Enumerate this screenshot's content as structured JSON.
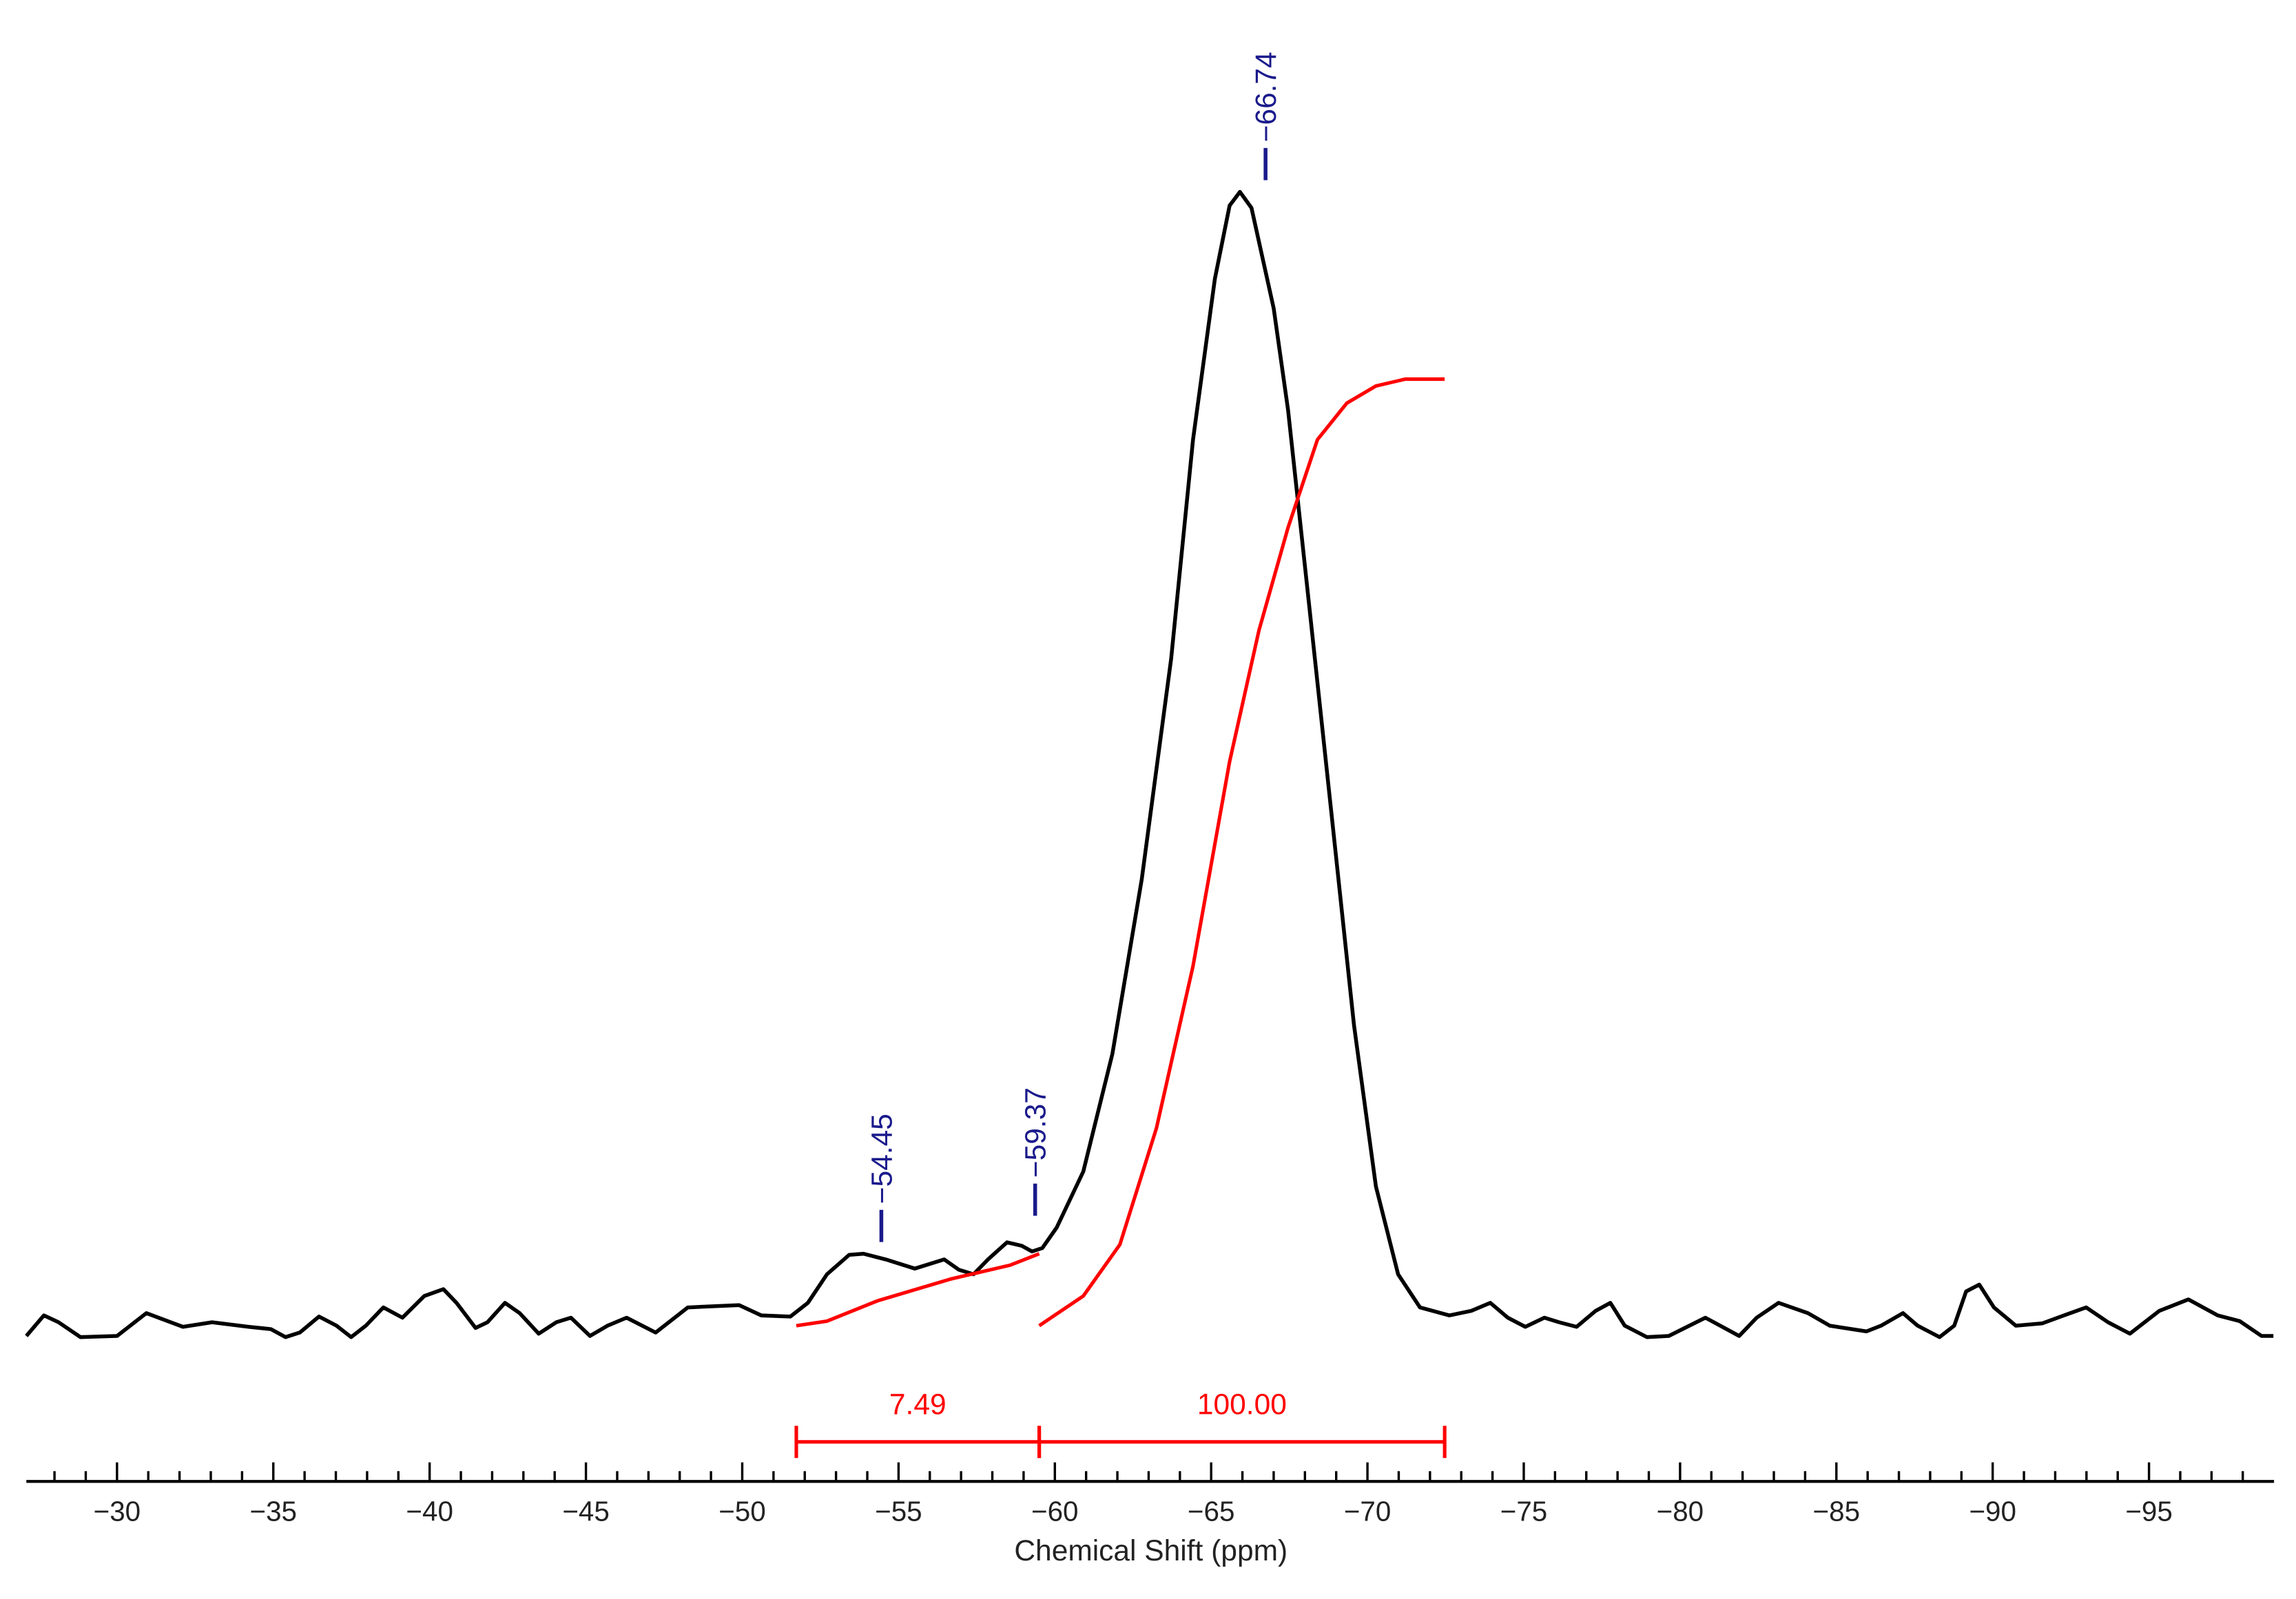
{
  "chart_data": {
    "type": "line",
    "xlabel": "Chemical Shift (ppm)",
    "color": "#000000",
    "xlim": [
      -27.1,
      -99
    ],
    "ylim": [
      -11.5,
      116.7
    ],
    "xticks": [
      {
        "value": -30,
        "label": "−30"
      },
      {
        "value": -35,
        "label": "−35"
      },
      {
        "value": -40,
        "label": "−40"
      },
      {
        "value": -45,
        "label": "−45"
      },
      {
        "value": -50,
        "label": "−50"
      },
      {
        "value": -55,
        "label": "−55"
      },
      {
        "value": -60,
        "label": "−60"
      },
      {
        "value": -65,
        "label": "−65"
      },
      {
        "value": -70,
        "label": "−70"
      },
      {
        "value": -75,
        "label": "−75"
      },
      {
        "value": -80,
        "label": "−80"
      },
      {
        "value": -85,
        "label": "−85"
      },
      {
        "value": -90,
        "label": "−90"
      },
      {
        "value": -95,
        "label": "−95"
      }
    ],
    "xminorticks": [
      -28,
      -29,
      -31,
      -32,
      -33,
      -34,
      -36,
      -37,
      -38,
      -39,
      -41,
      -42,
      -43,
      -44,
      -46,
      -47,
      -48,
      -49,
      -51,
      -52,
      -53,
      -54,
      -56,
      -57,
      -58,
      -59,
      -61,
      -62,
      -63,
      -64,
      -66,
      -67,
      -68,
      -69,
      -71,
      -72,
      -73,
      -74,
      -76,
      -77,
      -78,
      -79,
      -81,
      -82,
      -83,
      -84,
      -86,
      -87,
      -88,
      -89,
      -91,
      -92,
      -93,
      -94,
      -96,
      -97,
      -98
    ],
    "x": [
      -27.1,
      -27.66,
      -28.13,
      -28.83,
      -30.0,
      -30.94,
      -32.11,
      -33.04,
      -34.21,
      -34.92,
      -35.39,
      -35.85,
      -36.46,
      -37.02,
      -37.49,
      -37.96,
      -38.52,
      -39.13,
      -39.83,
      -40.44,
      -40.86,
      -41.47,
      -41.85,
      -42.41,
      -42.88,
      -43.49,
      -44.05,
      -44.52,
      -45.13,
      -45.69,
      -46.3,
      -47.23,
      -48.26,
      -49.9,
      -50.61,
      -51.54,
      -52.1,
      -52.71,
      -53.42,
      -53.88,
      -54.59,
      -55.52,
      -56.46,
      -56.93,
      -57.4,
      -57.86,
      -58.47,
      -58.94,
      -59.27,
      -59.6,
      -60.06,
      -60.91,
      -61.84,
      -62.78,
      -63.72,
      -64.42,
      -65.12,
      -65.59,
      -65.92,
      -66.29,
      -67.0,
      -67.46,
      -68.17,
      -68.87,
      -69.57,
      -70.27,
      -70.98,
      -71.68,
      -72.62,
      -73.32,
      -73.93,
      -74.49,
      -75.05,
      -75.66,
      -76.13,
      -76.69,
      -77.3,
      -77.77,
      -78.23,
      -78.94,
      -79.64,
      -80.81,
      -81.42,
      -81.89,
      -82.45,
      -83.15,
      -84.09,
      -84.79,
      -85.96,
      -86.43,
      -87.13,
      -87.6,
      -88.3,
      -88.77,
      -89.15,
      -89.57,
      -90.04,
      -90.74,
      -91.58,
      -92.28,
      -92.99,
      -93.69,
      -94.39,
      -95.33,
      -96.26,
      -97.2,
      -97.9,
      -98.6,
      -98.98
    ],
    "values": [
      -0.3,
      1.5,
      0.9,
      -0.4,
      -0.3,
      1.7,
      0.5,
      0.9,
      0.5,
      0.3,
      -0.4,
      0,
      1.4,
      0.6,
      -0.4,
      0.6,
      2.2,
      1.3,
      3.2,
      3.8,
      2.6,
      0.4,
      0.9,
      2.6,
      1.7,
      -0.1,
      0.9,
      1.3,
      -0.3,
      0.6,
      1.3,
      0,
      2.2,
      2.4,
      1.5,
      1.4,
      2.6,
      5.1,
      6.8,
      6.9,
      6.4,
      5.6,
      6.4,
      5.5,
      5.1,
      6.4,
      7.9,
      7.6,
      7.1,
      7.4,
      9.2,
      14.1,
      24.4,
      39.7,
      59.0,
      78.2,
      92.3,
      98.7,
      99.9,
      98.5,
      89.7,
      80.8,
      62.8,
      44.9,
      26.9,
      12.8,
      5.1,
      2.2,
      1.5,
      1.9,
      2.6,
      1.3,
      0.5,
      1.3,
      0.9,
      0.5,
      1.9,
      2.6,
      0.6,
      -0.4,
      -0.3,
      1.3,
      0.4,
      -0.3,
      1.3,
      2.6,
      1.7,
      0.6,
      0.1,
      0.6,
      1.7,
      0.6,
      -0.4,
      0.6,
      3.6,
      4.2,
      2.2,
      0.6,
      0.8,
      1.5,
      2.2,
      0.9,
      -0.1,
      1.9,
      2.9,
      1.5,
      1.0,
      -0.3,
      -0.3
    ],
    "peak_color": "#1a1a8c",
    "peaks": [
      {
        "value": -54.45,
        "label": "−54.45"
      },
      {
        "value": -59.37,
        "label": "−59.37"
      },
      {
        "value": -66.74,
        "label": "−66.74"
      }
    ],
    "integral_color": "#ff0000",
    "integrals": [
      {
        "from": -51.73,
        "to": -59.5,
        "value": 7.49,
        "x": [
          -51.73,
          -52.71,
          -54.35,
          -56.69,
          -58.57,
          -59.5
        ],
        "values": [
          0.6,
          1.0,
          2.8,
          4.7,
          5.9,
          6.9
        ]
      },
      {
        "from": -59.5,
        "to": -72.47,
        "value": 100,
        "value_label": "100.00",
        "x": [
          -59.5,
          -60.91,
          -62.08,
          -63.25,
          -64.42,
          -65.59,
          -66.53,
          -67.46,
          -68.4,
          -69.34,
          -70.27,
          -71.21,
          -72.47
        ],
        "values": [
          0.6,
          3.2,
          7.7,
          17.9,
          32.1,
          50.0,
          61.5,
          70.5,
          78.2,
          81.4,
          82.9,
          83.5,
          83.5
        ]
      }
    ]
  }
}
